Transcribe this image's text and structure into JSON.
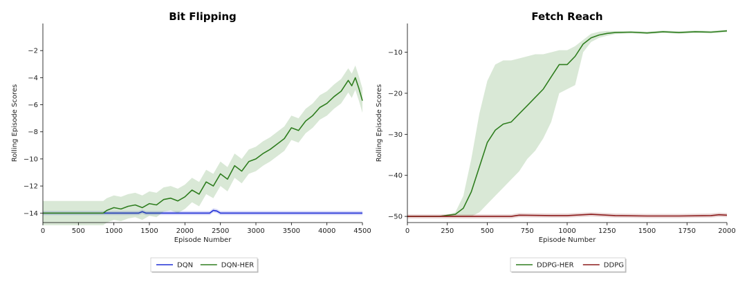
{
  "chart_data": [
    {
      "type": "line",
      "title": "Bit Flipping",
      "xlabel": "Episode Number",
      "ylabel": "Rolling Episode Scores",
      "xlim": [
        0,
        4500
      ],
      "ylim": [
        -14.7,
        0
      ],
      "x_ticks": [
        0,
        500,
        1000,
        1500,
        2000,
        2500,
        3000,
        3500,
        4000,
        4500
      ],
      "y_ticks": [
        -14,
        -12,
        -10,
        -8,
        -6,
        -4,
        -2
      ],
      "grid": false,
      "legend_position": "below",
      "series": [
        {
          "name": "DQN",
          "color": "#1f2fd6",
          "x": [
            0,
            900,
            1000,
            1350,
            1400,
            1450,
            1500,
            2350,
            2400,
            2450,
            2500,
            4500
          ],
          "values": [
            -14,
            -14,
            -14,
            -14,
            -13.9,
            -14,
            -14,
            -14,
            -13.8,
            -13.85,
            -14,
            -14
          ],
          "band": 0.15
        },
        {
          "name": "DQN-HER",
          "color": "#2e7d1e",
          "x": [
            0,
            850,
            900,
            1000,
            1100,
            1200,
            1300,
            1400,
            1500,
            1600,
            1700,
            1800,
            1900,
            2000,
            2100,
            2200,
            2300,
            2400,
            2500,
            2600,
            2700,
            2800,
            2900,
            3000,
            3100,
            3200,
            3300,
            3400,
            3500,
            3600,
            3700,
            3800,
            3900,
            4000,
            4100,
            4200,
            4300,
            4350,
            4400,
            4450,
            4500
          ],
          "values": [
            -14,
            -14,
            -13.8,
            -13.6,
            -13.7,
            -13.5,
            -13.4,
            -13.6,
            -13.3,
            -13.4,
            -13.0,
            -12.9,
            -13.1,
            -12.8,
            -12.3,
            -12.6,
            -11.7,
            -12.0,
            -11.1,
            -11.5,
            -10.5,
            -10.9,
            -10.2,
            -10.0,
            -9.6,
            -9.3,
            -8.9,
            -8.5,
            -7.7,
            -7.9,
            -7.2,
            -6.8,
            -6.2,
            -5.9,
            -5.4,
            -5.0,
            -4.2,
            -4.6,
            -4.0,
            -4.8,
            -5.7
          ],
          "band": 0.9
        }
      ]
    },
    {
      "type": "line",
      "title": "Fetch Reach",
      "xlabel": "Episode Number",
      "ylabel": "Rolling Episode Scores",
      "xlim": [
        0,
        2000
      ],
      "ylim": [
        -51.5,
        -3
      ],
      "x_ticks": [
        0,
        250,
        500,
        750,
        1000,
        1250,
        1500,
        1750,
        2000
      ],
      "y_ticks": [
        -50,
        -40,
        -30,
        -20,
        -10
      ],
      "grid": false,
      "legend_position": "below",
      "series": [
        {
          "name": "DDPG-HER",
          "color": "#2e7d1e",
          "x": [
            0,
            200,
            300,
            350,
            400,
            450,
            500,
            550,
            600,
            650,
            700,
            750,
            800,
            850,
            900,
            950,
            1000,
            1050,
            1100,
            1150,
            1200,
            1250,
            1300,
            1400,
            1500,
            1600,
            1700,
            1800,
            1900,
            2000
          ],
          "values": [
            -50,
            -50,
            -49.5,
            -48,
            -44,
            -38,
            -32,
            -29,
            -27.5,
            -27,
            -25,
            -23,
            -21,
            -19,
            -16,
            -13,
            -13,
            -11,
            -8,
            -6.5,
            -5.8,
            -5.4,
            -5.2,
            -5.1,
            -5.3,
            -5.0,
            -5.2,
            -5.0,
            -5.1,
            -4.8
          ],
          "upper": [
            -50,
            -50,
            -49,
            -45,
            -36,
            -25,
            -17,
            -13,
            -12,
            -12,
            -11.5,
            -11,
            -10.5,
            -10.5,
            -10,
            -9.5,
            -9.5,
            -8.5,
            -7,
            -5.5,
            -5,
            -4.8,
            -4.8,
            -4.8,
            -5.0,
            -4.7,
            -4.9,
            -4.7,
            -4.8,
            -4.5
          ],
          "lower": [
            -50,
            -50,
            -50,
            -50,
            -50,
            -49,
            -47,
            -45,
            -43,
            -41,
            -39,
            -36,
            -34,
            -31,
            -27,
            -20,
            -19,
            -18,
            -10,
            -7.5,
            -6.5,
            -6,
            -5.6,
            -5.4,
            -5.6,
            -5.3,
            -5.5,
            -5.3,
            -5.4,
            -5.1
          ]
        },
        {
          "name": "DDPG",
          "color": "#8b1a1a",
          "x": [
            0,
            250,
            500,
            650,
            700,
            900,
            1000,
            1100,
            1150,
            1200,
            1300,
            1500,
            1700,
            1900,
            1950,
            2000
          ],
          "values": [
            -50,
            -50,
            -50,
            -50,
            -49.7,
            -49.8,
            -49.8,
            -49.6,
            -49.5,
            -49.6,
            -49.8,
            -49.9,
            -49.9,
            -49.8,
            -49.6,
            -49.7
          ],
          "band": 0.5
        }
      ]
    }
  ]
}
